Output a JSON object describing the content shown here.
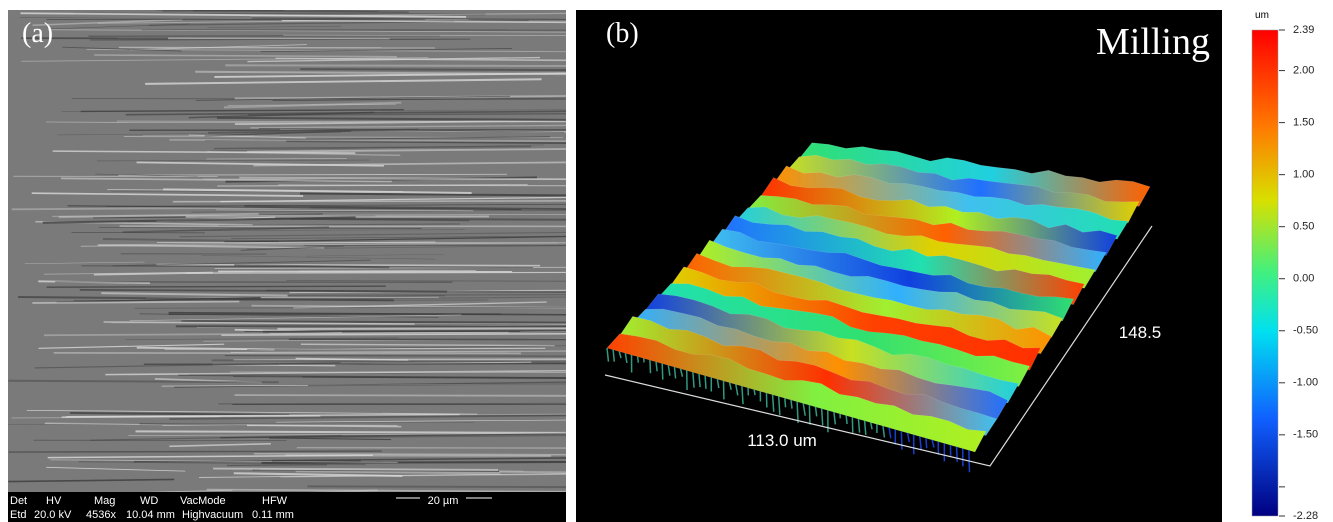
{
  "panels": [
    {
      "label": "(a)",
      "info_bar": {
        "headers": [
          "Det",
          "HV",
          "Mag",
          "WD",
          "VacMode",
          "HFW"
        ],
        "values": [
          "Etd",
          "20.0 kV",
          "4536x",
          "10.04 mm",
          "Highvacuum",
          "0.11 mm"
        ]
      },
      "scale_bar": "20 µm"
    },
    {
      "label": "(b)",
      "title": "Milling",
      "x_axis_label": "113.0 um",
      "y_axis_label": "148.5"
    }
  ],
  "colorbar": {
    "unit": "um",
    "lim": [
      -2.28,
      2.39
    ],
    "ticks": [
      2.39,
      {
        "value": 2,
        "label": "2.00"
      },
      {
        "value": 1.5,
        "label": "1.50"
      },
      {
        "value": 1,
        "label": "1.00"
      },
      {
        "value": 0.5,
        "label": "0.50"
      },
      {
        "value": 0,
        "label": "0.00"
      },
      {
        "value": -0.5,
        "label": "-0.50"
      },
      {
        "value": -1,
        "label": "-1.00"
      },
      {
        "value": -1.5,
        "label": "-1.50"
      },
      -2.28
    ],
    "minor_ticks": [
      -2
    ]
  }
}
